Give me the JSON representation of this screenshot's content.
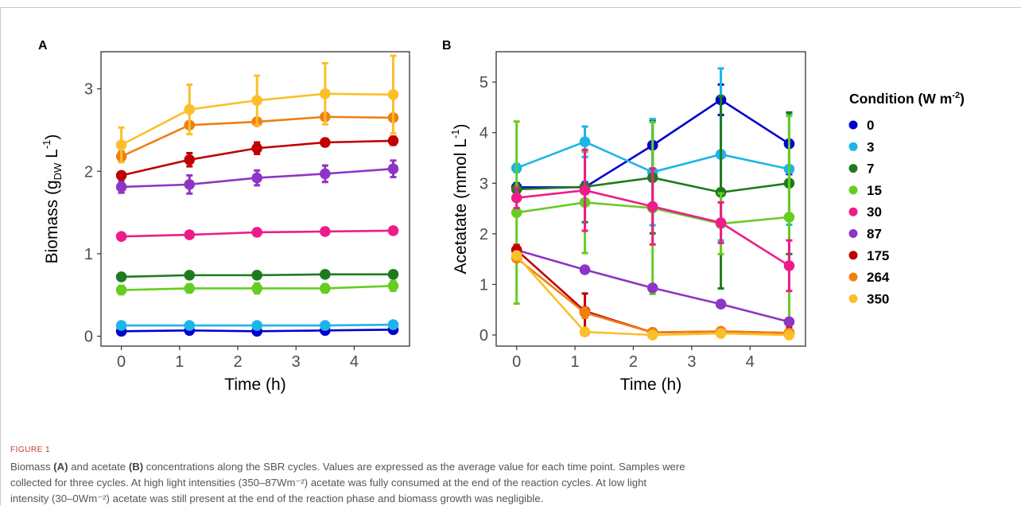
{
  "figure": {
    "label": "FIGURE 1",
    "caption_lines": [
      {
        "pre": "Biomass ",
        "b1": "(A)",
        "mid": " and acetate ",
        "b2": "(B)",
        "post": " concentrations along the SBR cycles. Values are expressed as the average value for each time point. Samples were"
      },
      {
        "text": "collected for three cycles. At high light intensities (350–87Wm⁻²) acetate was fully consumed at the end of the reaction cycles. At low light"
      },
      {
        "text": "intensity (30–0Wm⁻²) acetate was still present at the end of the reaction phase and biomass growth was negligible."
      }
    ]
  },
  "legend": {
    "title": "Condition (W m",
    "title_sup": "-2",
    "title_end": ")"
  },
  "chart_data": [
    {
      "panel": "A",
      "type": "line",
      "xlabel": "Time (h)",
      "ylabel": "Biomass (g",
      "ylabel_sub": "DW",
      "ylabel_unit": " L",
      "ylabel_sup": "-1",
      "ylabel_end": ")",
      "xlim": [
        -0.35,
        4.95
      ],
      "ylim": [
        -0.12,
        3.45
      ],
      "xticks": [
        0,
        1,
        2,
        3,
        4
      ],
      "yticks": [
        0,
        1,
        2,
        3
      ],
      "x": [
        0,
        1.17,
        2.33,
        3.5,
        4.67
      ],
      "series": [
        {
          "name": "0",
          "color": "#0000cd",
          "values": [
            0.06,
            0.07,
            0.06,
            0.07,
            0.08
          ],
          "err": [
            0.02,
            0.02,
            0.02,
            0.02,
            0.02
          ]
        },
        {
          "name": "3",
          "color": "#1cb5e8",
          "values": [
            0.13,
            0.13,
            0.13,
            0.13,
            0.14
          ],
          "err": [
            0.02,
            0.02,
            0.02,
            0.02,
            0.02
          ]
        },
        {
          "name": "7",
          "color": "#1f7a1f",
          "values": [
            0.72,
            0.74,
            0.74,
            0.75,
            0.75
          ],
          "err": [
            0.02,
            0.02,
            0.02,
            0.02,
            0.02
          ]
        },
        {
          "name": "15",
          "color": "#66cc22",
          "values": [
            0.56,
            0.58,
            0.58,
            0.58,
            0.61
          ],
          "err": [
            0.05,
            0.05,
            0.06,
            0.05,
            0.06
          ]
        },
        {
          "name": "30",
          "color": "#ee1c8a",
          "values": [
            1.21,
            1.23,
            1.26,
            1.27,
            1.28
          ],
          "err": [
            0.02,
            0.02,
            0.02,
            0.02,
            0.02
          ]
        },
        {
          "name": "87",
          "color": "#8e35c4",
          "values": [
            1.81,
            1.84,
            1.92,
            1.97,
            2.03
          ],
          "err": [
            0.07,
            0.11,
            0.09,
            0.1,
            0.1
          ]
        },
        {
          "name": "175",
          "color": "#c00000",
          "values": [
            1.95,
            2.14,
            2.28,
            2.35,
            2.37
          ],
          "err": [
            0.03,
            0.08,
            0.07,
            0.04,
            0.05
          ]
        },
        {
          "name": "264",
          "color": "#f07f10",
          "values": [
            2.18,
            2.56,
            2.6,
            2.66,
            2.65
          ],
          "err": [
            0.06,
            0.04,
            0.04,
            0.03,
            0.04
          ]
        },
        {
          "name": "350",
          "color": "#fbbf2a",
          "values": [
            2.32,
            2.75,
            2.86,
            2.94,
            2.93
          ],
          "err": [
            0.21,
            0.3,
            0.3,
            0.37,
            0.47
          ]
        }
      ]
    },
    {
      "panel": "B",
      "type": "line",
      "xlabel": "Time (h)",
      "ylabel": "Acetatate (mmol L",
      "ylabel_sup": "-1",
      "ylabel_end": ")",
      "xlim": [
        -0.35,
        4.95
      ],
      "ylim": [
        -0.22,
        5.6
      ],
      "xticks": [
        0,
        1,
        2,
        3,
        4
      ],
      "yticks": [
        0,
        1,
        2,
        3,
        4,
        5
      ],
      "x": [
        0,
        1.17,
        2.33,
        3.5,
        4.67
      ],
      "series": [
        {
          "name": "0",
          "color": "#0000cd",
          "values": [
            2.92,
            2.92,
            3.75,
            4.65,
            3.78
          ],
          "err": [
            0.08,
            0.1,
            0.5,
            0.3,
            0.6
          ]
        },
        {
          "name": "3",
          "color": "#1cb5e8",
          "values": [
            3.3,
            3.82,
            3.22,
            3.57,
            3.28
          ],
          "err": [
            0.08,
            0.3,
            1.05,
            1.7,
            1.1
          ]
        },
        {
          "name": "7",
          "color": "#1f7a1f",
          "values": [
            2.88,
            2.93,
            3.11,
            2.82,
            3.0
          ],
          "err": [
            0.1,
            0.7,
            1.1,
            1.9,
            1.4
          ]
        },
        {
          "name": "15",
          "color": "#66cc22",
          "values": [
            2.42,
            2.62,
            2.51,
            2.2,
            2.33
          ],
          "err": [
            1.8,
            1.0,
            1.7,
            0.6,
            2.0
          ]
        },
        {
          "name": "30",
          "color": "#ee1c8a",
          "values": [
            2.71,
            2.86,
            2.54,
            2.22,
            1.37
          ],
          "err": [
            0.2,
            0.8,
            0.75,
            0.4,
            0.5
          ]
        },
        {
          "name": "87",
          "color": "#8e35c4",
          "values": [
            1.68,
            1.29,
            0.93,
            0.61,
            0.26
          ],
          "err": [
            0.05,
            0.05,
            0.05,
            0.04,
            0.04
          ]
        },
        {
          "name": "175",
          "color": "#c00000",
          "values": [
            1.68,
            0.47,
            0.05,
            0.07,
            0.04
          ],
          "err": [
            0.1,
            0.35,
            0.05,
            0.06,
            0.1
          ]
        },
        {
          "name": "264",
          "color": "#f07f10",
          "values": [
            1.52,
            0.44,
            0.05,
            0.07,
            0.04
          ],
          "err": [
            0.05,
            0.1,
            0.04,
            0.04,
            0.05
          ]
        },
        {
          "name": "350",
          "color": "#fbbf2a",
          "values": [
            1.57,
            0.06,
            0.0,
            0.03,
            0.0
          ],
          "err": [
            0.05,
            0.03,
            0.02,
            0.02,
            0.02
          ]
        }
      ]
    }
  ]
}
